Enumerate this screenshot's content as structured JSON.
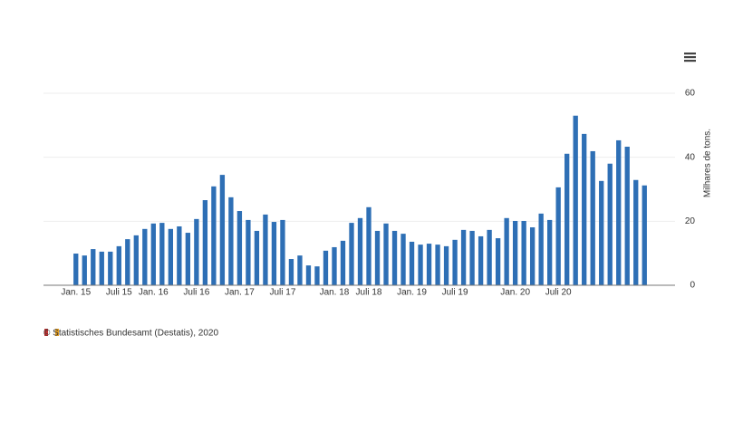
{
  "chart_data": {
    "type": "bar",
    "y_axis_label": "Milhares de tons.",
    "source": "© Statistisches Bundesamt (Destatis), 2020",
    "categories": [
      "Jan. 15",
      null,
      null,
      null,
      null,
      "Juli 15",
      null,
      null,
      null,
      "Jan. 16",
      null,
      null,
      null,
      null,
      "Juli 16",
      null,
      null,
      null,
      null,
      "Jan. 17",
      null,
      null,
      null,
      null,
      "Juli 17",
      null,
      null,
      null,
      null,
      null,
      "Jan. 18",
      null,
      null,
      null,
      "Juli 18",
      null,
      null,
      null,
      null,
      "Jan. 19",
      null,
      null,
      null,
      null,
      "Juli 19",
      null,
      null,
      null,
      null,
      null,
      null,
      "Jan. 20",
      null,
      null,
      null,
      null,
      "Juli 20",
      null,
      null,
      null,
      null,
      null,
      null,
      null,
      null,
      null,
      null
    ],
    "values": [
      9.9,
      9.3,
      11.3,
      10.5,
      10.5,
      12.2,
      14.4,
      15.6,
      17.6,
      19.3,
      19.5,
      17.6,
      18.4,
      16.4,
      20.7,
      26.6,
      30.9,
      34.5,
      27.5,
      23.2,
      20.4,
      17,
      22.1,
      19.8,
      20.4,
      8.2,
      9.3,
      6.2,
      5.9,
      10.8,
      11.9,
      13.9,
      19.5,
      21,
      24.4,
      17,
      19.3,
      17,
      16.1,
      13.6,
      12.7,
      13,
      12.7,
      12.2,
      14.2,
      17.3,
      17,
      15.3,
      17.3,
      14.7,
      21,
      20.1,
      20.1,
      18.1,
      22.4,
      20.4,
      30.6,
      41.1,
      53,
      47.3,
      41.9,
      32.6,
      38,
      45.3,
      43.3,
      32.9,
      31.2
    ],
    "color": "#2e6fb5",
    "ylim": [
      0,
      60
    ],
    "yticks": [
      0,
      20,
      40,
      60
    ],
    "grid": true
  }
}
